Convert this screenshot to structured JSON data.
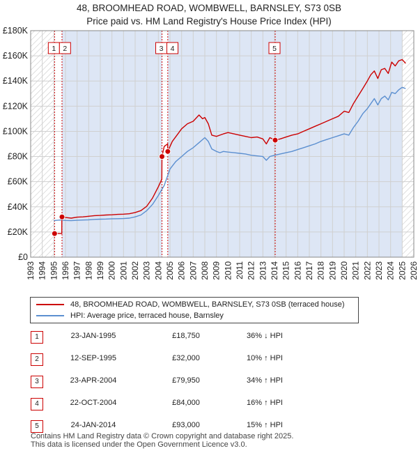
{
  "title_line1": "48, BROOMHEAD ROAD, WOMBWELL, BARNSLEY, S73 0SB",
  "title_line2": "Price paid vs. HM Land Registry's House Price Index (HPI)",
  "colors": {
    "property": "#cc0000",
    "hpi": "#5b8fd0",
    "highlight": "#dde6f5",
    "hatch": "#c9c9c9",
    "grid": "#d0d0d0"
  },
  "chart_data": {
    "type": "line",
    "xlim": [
      1993,
      2026
    ],
    "ylim": [
      0,
      180000
    ],
    "yticks": [
      0,
      20000,
      40000,
      60000,
      80000,
      100000,
      120000,
      140000,
      160000,
      180000
    ],
    "ytick_labels": [
      "£0",
      "£20K",
      "£40K",
      "£60K",
      "£80K",
      "£100K",
      "£120K",
      "£140K",
      "£160K",
      "£180K"
    ],
    "xtick_labels": [
      "1993",
      "1994",
      "1995",
      "1996",
      "1997",
      "1998",
      "1999",
      "2000",
      "2001",
      "2002",
      "2003",
      "2004",
      "2005",
      "2006",
      "2007",
      "2008",
      "2009",
      "2010",
      "2011",
      "2012",
      "2013",
      "2014",
      "2015",
      "2016",
      "2017",
      "2018",
      "2019",
      "2020",
      "2021",
      "2022",
      "2023",
      "2024",
      "2025",
      "2026"
    ],
    "hatched_before": 1995.0,
    "hatched_after": 2025.0,
    "series": [
      {
        "name": "property",
        "label": "48, BROOMHEAD ROAD, WOMBWELL, BARNSLEY, S73 0SB (terraced house)",
        "x": [
          1995.06,
          1995.68,
          1995.69,
          1996.0,
          1996.5,
          1997.0,
          1997.5,
          1998.0,
          1998.5,
          1999.0,
          1999.5,
          2000.0,
          2000.5,
          2001.0,
          2001.5,
          2002.0,
          2002.5,
          2003.0,
          2003.5,
          2004.0,
          2004.3,
          2004.31,
          2004.5,
          2004.8,
          2004.81,
          2005.2,
          2005.6,
          2006.0,
          2006.5,
          2007.0,
          2007.5,
          2007.8,
          2008.0,
          2008.3,
          2008.6,
          2009.0,
          2009.3,
          2009.6,
          2010.0,
          2010.5,
          2011.0,
          2011.5,
          2012.0,
          2012.5,
          2013.0,
          2013.3,
          2013.6,
          2014.06,
          2014.5,
          2015.0,
          2015.5,
          2016.0,
          2016.5,
          2017.0,
          2017.5,
          2018.0,
          2018.5,
          2019.0,
          2019.5,
          2020.0,
          2020.4,
          2020.8,
          2021.2,
          2021.6,
          2022.0,
          2022.3,
          2022.6,
          2022.9,
          2023.2,
          2023.5,
          2023.8,
          2024.1,
          2024.4,
          2024.7,
          2025.0,
          2025.3
        ],
        "y": [
          18750,
          18750,
          32000,
          31500,
          31000,
          31800,
          32000,
          32500,
          33000,
          33200,
          33500,
          33700,
          34000,
          34200,
          34500,
          35500,
          37000,
          40500,
          47000,
          56000,
          62000,
          79950,
          88000,
          90000,
          84000,
          92000,
          97000,
          102000,
          106000,
          108000,
          113000,
          110000,
          111000,
          106000,
          97000,
          96000,
          97000,
          98000,
          99000,
          98000,
          97000,
          96000,
          95000,
          95500,
          94000,
          90000,
          95000,
          93000,
          94000,
          95500,
          97000,
          98000,
          100000,
          102000,
          104000,
          106000,
          108000,
          110000,
          112000,
          116000,
          115000,
          122000,
          128000,
          134000,
          140000,
          145000,
          148000,
          142000,
          149000,
          150000,
          146000,
          155000,
          152000,
          156000,
          157000,
          154000
        ]
      },
      {
        "name": "hpi",
        "label": "HPI: Average price, terraced house, Barnsley",
        "x": [
          1995.0,
          1995.5,
          1996.0,
          1996.5,
          1997.0,
          1997.5,
          1998.0,
          1998.5,
          1999.0,
          1999.5,
          2000.0,
          2000.5,
          2001.0,
          2001.5,
          2002.0,
          2002.5,
          2003.0,
          2003.5,
          2004.0,
          2004.5,
          2005.0,
          2005.5,
          2006.0,
          2006.5,
          2007.0,
          2007.5,
          2008.0,
          2008.3,
          2008.6,
          2009.0,
          2009.3,
          2009.6,
          2010.0,
          2010.5,
          2011.0,
          2011.5,
          2012.0,
          2012.5,
          2013.0,
          2013.3,
          2013.6,
          2014.0,
          2014.5,
          2015.0,
          2015.5,
          2016.0,
          2016.5,
          2017.0,
          2017.5,
          2018.0,
          2018.5,
          2019.0,
          2019.5,
          2020.0,
          2020.4,
          2020.8,
          2021.2,
          2021.6,
          2022.0,
          2022.3,
          2022.6,
          2022.9,
          2023.2,
          2023.5,
          2023.8,
          2024.1,
          2024.4,
          2024.7,
          2025.0,
          2025.3
        ],
        "y": [
          29000,
          29500,
          29200,
          29000,
          29300,
          29500,
          29700,
          30000,
          30200,
          30300,
          30500,
          30600,
          30700,
          31000,
          32000,
          33500,
          37000,
          42000,
          49000,
          57000,
          70000,
          76000,
          80000,
          84000,
          87000,
          91000,
          95000,
          92000,
          86000,
          84000,
          83000,
          84000,
          83500,
          83000,
          82500,
          82000,
          81000,
          80500,
          80000,
          77000,
          80000,
          81000,
          82000,
          83000,
          84000,
          85500,
          87000,
          88500,
          90000,
          92000,
          93500,
          95000,
          96500,
          98000,
          97000,
          103000,
          108000,
          114000,
          118000,
          122000,
          126000,
          121000,
          126000,
          128000,
          125000,
          131000,
          130000,
          133000,
          135000,
          134000
        ]
      }
    ],
    "transactions": [
      {
        "num": "1",
        "x": 1995.06,
        "y": 18750,
        "date": "23-JAN-1995",
        "price": "£18,750",
        "hpi": "36% ↓ HPI"
      },
      {
        "num": "2",
        "x": 1995.7,
        "y": 32000,
        "date": "12-SEP-1995",
        "price": "£32,000",
        "hpi": "10% ↑ HPI"
      },
      {
        "num": "3",
        "x": 2004.31,
        "y": 79950,
        "date": "23-APR-2004",
        "price": "£79,950",
        "hpi": "34% ↑ HPI"
      },
      {
        "num": "4",
        "x": 2004.81,
        "y": 84000,
        "date": "22-OCT-2004",
        "price": "£84,000",
        "hpi": "16% ↑ HPI"
      },
      {
        "num": "5",
        "x": 2014.06,
        "y": 93000,
        "date": "24-JAN-2014",
        "price": "£93,000",
        "hpi": "15% ↑ HPI"
      }
    ]
  },
  "footer_line1": "Contains HM Land Registry data © Crown copyright and database right 2025.",
  "footer_line2": "This data is licensed under the Open Government Licence v3.0."
}
